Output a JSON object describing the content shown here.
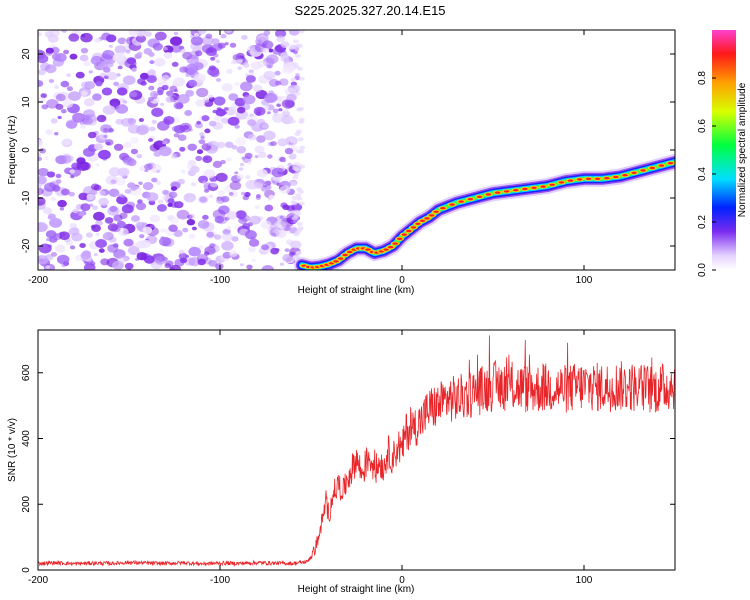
{
  "figure_title": "S225.2025.327.20.14.E15",
  "colors": {
    "noise": "#8a3cf0",
    "snr_line": "#e8262a",
    "frame": "#000000"
  },
  "chart_data": [
    {
      "type": "heatmap",
      "title": "S225.2025.327.20.14.E15",
      "xlabel": "Height of straight line (km)",
      "ylabel": "Frequency (Hz)",
      "xlim": [
        -200,
        150
      ],
      "ylim": [
        -25,
        25
      ],
      "xticks": [
        "-200",
        "-100",
        "0",
        "100"
      ],
      "yticks": [
        "-20",
        "-10",
        "0",
        "10",
        "20"
      ],
      "noise_region": {
        "x_from": -200,
        "x_to": -57
      },
      "ridge": {
        "x": [
          -55,
          -50,
          -45,
          -40,
          -35,
          -30,
          -25,
          -20,
          -15,
          -10,
          -5,
          0,
          5,
          10,
          15,
          20,
          30,
          40,
          50,
          60,
          70,
          80,
          90,
          100,
          110,
          120,
          130,
          140,
          150
        ],
        "y": [
          -24,
          -24.5,
          -24.3,
          -23.8,
          -23,
          -21.5,
          -20.5,
          -20.5,
          -21.5,
          -21,
          -20,
          -18,
          -16.5,
          -15,
          -14,
          -12.5,
          -11,
          -10,
          -9,
          -8.5,
          -8,
          -7.5,
          -6.5,
          -6,
          -6,
          -5.5,
          -4.5,
          -3.5,
          -2.5
        ]
      },
      "colorbar": {
        "label": "Normalized spectral amplitude",
        "ticks": [
          "0.0",
          "0.2",
          "0.4",
          "0.6",
          "0.8"
        ],
        "range": [
          0,
          1
        ]
      }
    },
    {
      "type": "line",
      "xlabel": "Height of straight line (km)",
      "ylabel": "SNR (10 * v/v)",
      "xlim": [
        -200,
        150
      ],
      "ylim": [
        0,
        730
      ],
      "xticks": [
        "-200",
        "-100",
        "0",
        "100"
      ],
      "yticks": [
        "0",
        "200",
        "400",
        "600"
      ],
      "series": [
        {
          "x": [
            -200,
            -190,
            -180,
            -170,
            -160,
            -150,
            -140,
            -130,
            -120,
            -110,
            -100,
            -90,
            -80,
            -70,
            -60,
            -52,
            -48,
            -45,
            -42,
            -40,
            -38,
            -35,
            -32,
            -30,
            -28,
            -25,
            -22,
            -20,
            -18,
            -15,
            -12,
            -10,
            -8,
            -5,
            -2,
            0,
            2,
            5,
            8,
            10,
            15,
            20,
            25,
            30,
            40,
            50,
            60,
            70,
            80,
            90,
            100,
            110,
            120,
            130,
            140,
            150
          ],
          "values": [
            20,
            22,
            19,
            21,
            20,
            23,
            21,
            20,
            22,
            19,
            21,
            20,
            22,
            21,
            20,
            25,
            60,
            120,
            200,
            170,
            230,
            260,
            240,
            280,
            300,
            340,
            290,
            320,
            350,
            300,
            330,
            310,
            360,
            340,
            380,
            360,
            420,
            430,
            440,
            450,
            490,
            500,
            520,
            520,
            540,
            560,
            560,
            550,
            555,
            550,
            560,
            555,
            560,
            555,
            550,
            565
          ]
        }
      ]
    }
  ]
}
